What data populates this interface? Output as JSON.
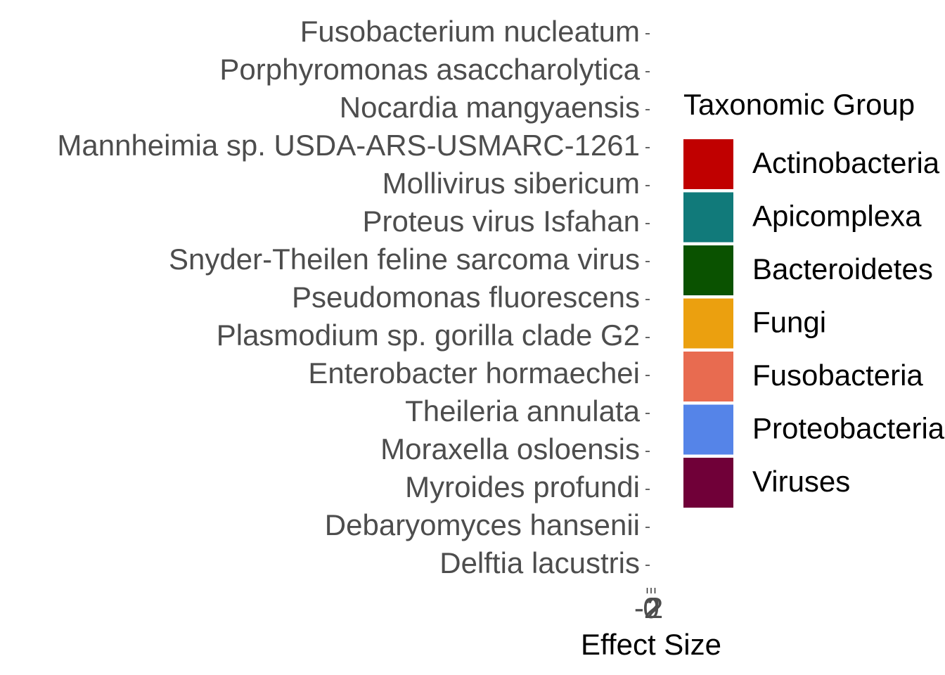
{
  "chart_data": {
    "type": "bar",
    "orientation": "horizontal",
    "xlabel": "Effect Size",
    "categories": [
      "Fusobacterium nucleatum",
      "Porphyromonas asaccharolytica",
      "Nocardia mangyaensis",
      "Mannheimia sp. USDA-ARS-USMARC-1261",
      "Mollivirus sibericum",
      "Proteus virus Isfahan",
      "Snyder-Theilen feline sarcoma virus",
      "Pseudomonas fluorescens",
      "Plasmodium sp. gorilla clade G2",
      "Enterobacter hormaechei",
      "Theileria annulata",
      "Moraxella osloensis",
      "Myroides profundi",
      "Debaryomyces hansenii",
      "Delftia lacustris"
    ],
    "xlim": [
      -3,
      3
    ],
    "xticks": [
      -2,
      0,
      2
    ],
    "legend": {
      "title": "Taxonomic Group",
      "items": [
        {
          "name": "Actinobacteria",
          "color": "#c00000"
        },
        {
          "name": "Apicomplexa",
          "color": "#117a7a"
        },
        {
          "name": "Bacteroidetes",
          "color": "#0a5200"
        },
        {
          "name": "Fungi",
          "color": "#eba00f"
        },
        {
          "name": "Fusobacteria",
          "color": "#e86b50"
        },
        {
          "name": "Proteobacteria",
          "color": "#5584e8"
        },
        {
          "name": "Viruses",
          "color": "#700038"
        }
      ]
    }
  }
}
